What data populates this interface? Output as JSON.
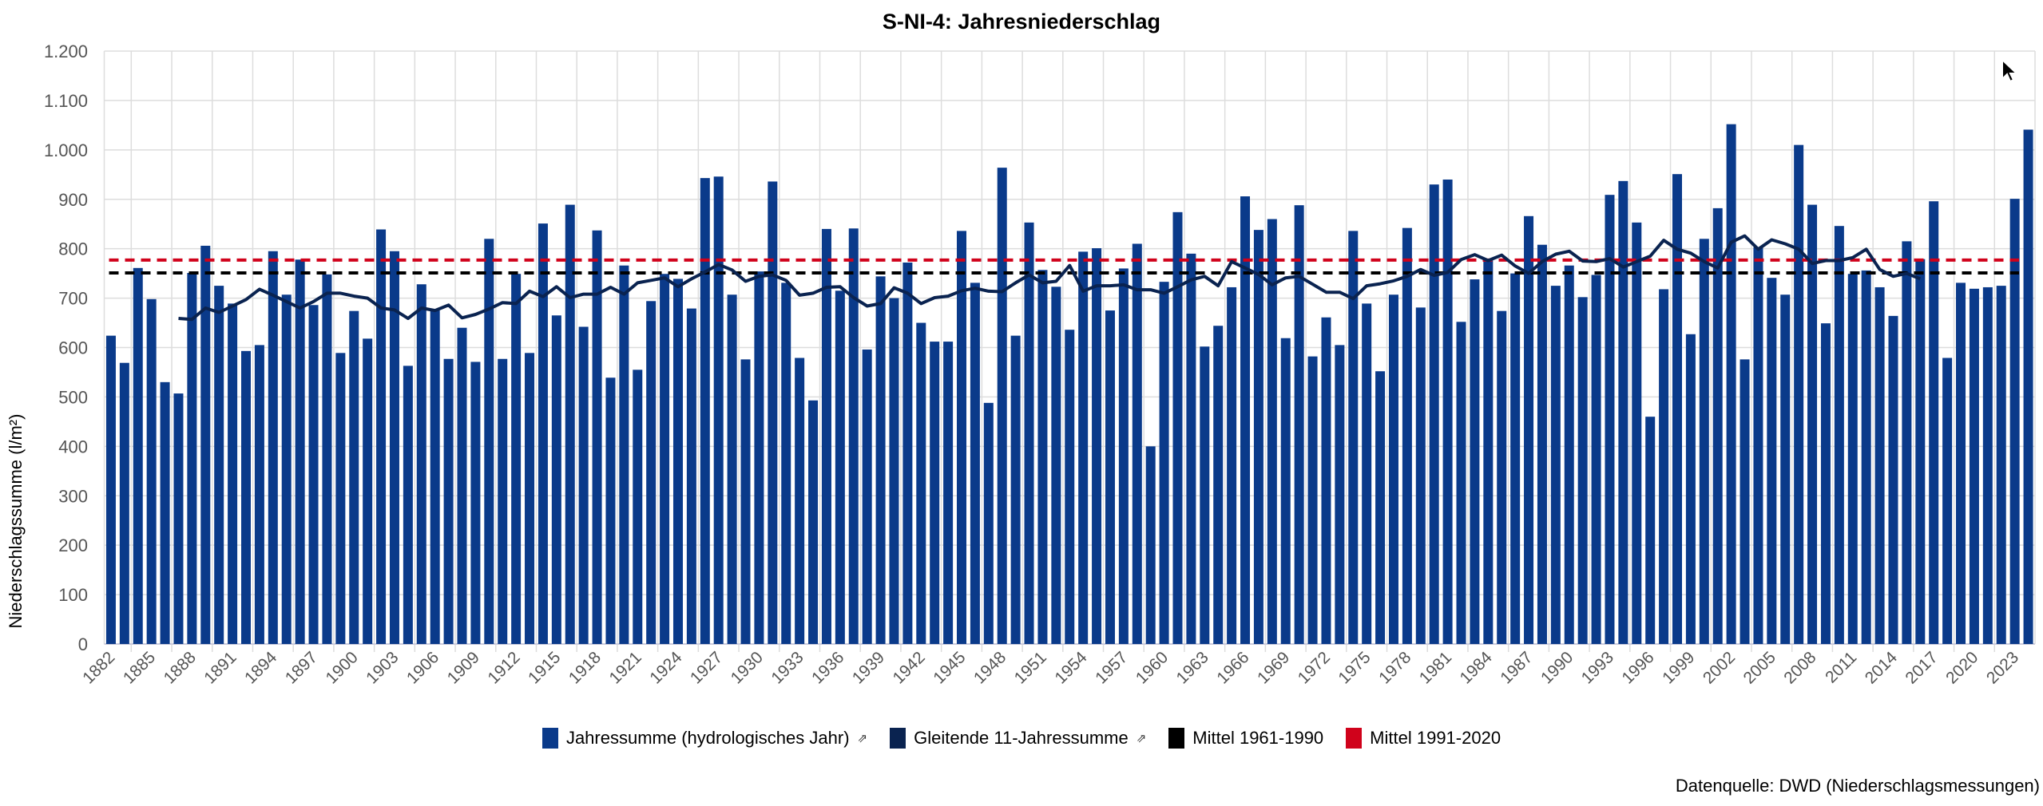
{
  "title": "S-NI-4: Jahresniederschlag",
  "source": "Datenquelle: DWD (Niederschlagsmessungen)",
  "colors": {
    "bars": "#0a3a8a",
    "moving_avg": "#0a2350",
    "mean_1961_1990": "#000000",
    "mean_1991_2020": "#d0021b",
    "grid": "#dddddd"
  },
  "legend": [
    {
      "label": "Jahressumme (hydrologisches Jahr)",
      "ext": "⇗",
      "color": "#0a3a8a"
    },
    {
      "label": "Gleitende 11-Jahressumme",
      "ext": "⇗",
      "color": "#0a2350"
    },
    {
      "label": "Mittel 1961-1990",
      "ext": "",
      "color": "#000000"
    },
    {
      "label": "Mittel 1991-2020",
      "ext": "",
      "color": "#d0021b"
    }
  ],
  "chart_data": {
    "type": "bar",
    "title": "S-NI-4: Jahresniederschlag",
    "xlabel": "",
    "ylabel": "Niederschlagssumme (l/m²)",
    "ylim": [
      0,
      1200
    ],
    "yticks": [
      0,
      100,
      200,
      300,
      400,
      500,
      600,
      700,
      800,
      900,
      1000,
      1100,
      1200
    ],
    "ytick_labels": [
      "0",
      "100",
      "200",
      "300",
      "400",
      "500",
      "600",
      "700",
      "800",
      "900",
      "1.000",
      "1.100",
      "1.200"
    ],
    "xtick_labels": [
      "1882",
      "1885",
      "1888",
      "1891",
      "1894",
      "1897",
      "1900",
      "1903",
      "1906",
      "1909",
      "1912",
      "1915",
      "1918",
      "1921",
      "1924",
      "1927",
      "1930",
      "1933",
      "1936",
      "1939",
      "1942",
      "1945",
      "1948",
      "1951",
      "1954",
      "1957",
      "1960",
      "1963",
      "1966",
      "1969",
      "1972",
      "1975",
      "1978",
      "1981",
      "1984",
      "1987",
      "1990",
      "1993",
      "1996",
      "1999",
      "2002",
      "2005",
      "2008",
      "2011",
      "2014",
      "2017",
      "2020",
      "2023"
    ],
    "grid": true,
    "legend_position": "bottom",
    "categories": [
      1882,
      1883,
      1884,
      1885,
      1886,
      1887,
      1888,
      1889,
      1890,
      1891,
      1892,
      1893,
      1894,
      1895,
      1896,
      1897,
      1898,
      1899,
      1900,
      1901,
      1902,
      1903,
      1904,
      1905,
      1906,
      1907,
      1908,
      1909,
      1910,
      1911,
      1912,
      1913,
      1914,
      1915,
      1916,
      1917,
      1918,
      1919,
      1920,
      1921,
      1922,
      1923,
      1924,
      1925,
      1926,
      1927,
      1928,
      1929,
      1930,
      1931,
      1932,
      1933,
      1934,
      1935,
      1936,
      1937,
      1938,
      1939,
      1940,
      1941,
      1942,
      1943,
      1944,
      1945,
      1946,
      1947,
      1948,
      1949,
      1950,
      1951,
      1952,
      1953,
      1954,
      1955,
      1956,
      1957,
      1958,
      1959,
      1960,
      1961,
      1962,
      1963,
      1964,
      1965,
      1966,
      1967,
      1968,
      1969,
      1970,
      1971,
      1972,
      1973,
      1974,
      1975,
      1976,
      1977,
      1978,
      1979,
      1980,
      1981,
      1982,
      1983,
      1984,
      1985,
      1986,
      1987,
      1988,
      1989,
      1990,
      1991,
      1992,
      1993,
      1994,
      1995,
      1996,
      1997,
      1998,
      1999,
      2000,
      2001,
      2002,
      2003,
      2004,
      2005,
      2006,
      2007,
      2008,
      2009,
      2010,
      2011,
      2012,
      2013,
      2014,
      2015,
      2016,
      2017,
      2018,
      2019,
      2020,
      2021,
      2022,
      2023,
      2024
    ],
    "series": [
      {
        "name": "Jahressumme (hydrologisches Jahr)",
        "type": "bar",
        "values": [
          624,
          569,
          761,
          698,
          530,
          507,
          751,
          806,
          725,
          689,
          593,
          605,
          795,
          707,
          778,
          686,
          748,
          589,
          674,
          618,
          839,
          795,
          563,
          728,
          675,
          577,
          640,
          571,
          820,
          577,
          749,
          589,
          851,
          665,
          889,
          642,
          837,
          539,
          766,
          555,
          694,
          749,
          739,
          679,
          943,
          946,
          707,
          576,
          754,
          936,
          731,
          579,
          493,
          840,
          715,
          841,
          596,
          744,
          700,
          772,
          650,
          612,
          612,
          836,
          731,
          488,
          964,
          624,
          853,
          757,
          723,
          636,
          794,
          801,
          675,
          760,
          810,
          400,
          733,
          874,
          790,
          602,
          644,
          722,
          906,
          838,
          860,
          619,
          888,
          582,
          661,
          605,
          836,
          689,
          552,
          707,
          842,
          681,
          930,
          940,
          652,
          738,
          778,
          674,
          750,
          866,
          808,
          725,
          766,
          702,
          747,
          909,
          937,
          853,
          460,
          718,
          951,
          627,
          820,
          882,
          1052,
          576,
          803,
          741,
          707,
          1010,
          889,
          649,
          846,
          749,
          756,
          722,
          664,
          815,
          779,
          896,
          579,
          731,
          719,
          722,
          725,
          901,
          1041
        ]
      },
      {
        "name": "Gleitende 11-Jahressumme",
        "type": "line",
        "values": [
          null,
          null,
          null,
          null,
          null,
          659,
          657,
          680,
          671,
          684,
          697,
          718,
          706,
          693,
          680,
          693,
          710,
          710,
          704,
          700,
          680,
          676,
          659,
          680,
          675,
          686,
          660,
          667,
          678,
          691,
          689,
          714,
          703,
          723,
          701,
          708,
          708,
          722,
          708,
          731,
          736,
          741,
          723,
          739,
          753,
          768,
          757,
          734,
          744,
          747,
          736,
          706,
          710,
          722,
          723,
          701,
          684,
          689,
          721,
          710,
          689,
          701,
          704,
          715,
          720,
          714,
          713,
          731,
          747,
          731,
          734,
          766,
          714,
          725,
          725,
          727,
          717,
          717,
          710,
          723,
          737,
          744,
          725,
          774,
          761,
          748,
          727,
          741,
          744,
          728,
          712,
          712,
          699,
          725,
          729,
          735,
          744,
          758,
          746,
          752,
          778,
          788,
          776,
          787,
          765,
          750,
          774,
          789,
          795,
          775,
          774,
          780,
          763,
          774,
          785,
          817,
          799,
          791,
          774,
          761,
          813,
          826,
          799,
          818,
          810,
          799,
          770,
          776,
          776,
          782,
          799,
          758,
          744,
          750,
          739,
          null,
          null,
          null,
          null,
          null,
          null,
          null,
          null
        ]
      },
      {
        "name": "Mittel 1961-1990",
        "type": "hline",
        "value": 751
      },
      {
        "name": "Mittel 1991-2020",
        "type": "hline",
        "value": 777
      }
    ]
  }
}
